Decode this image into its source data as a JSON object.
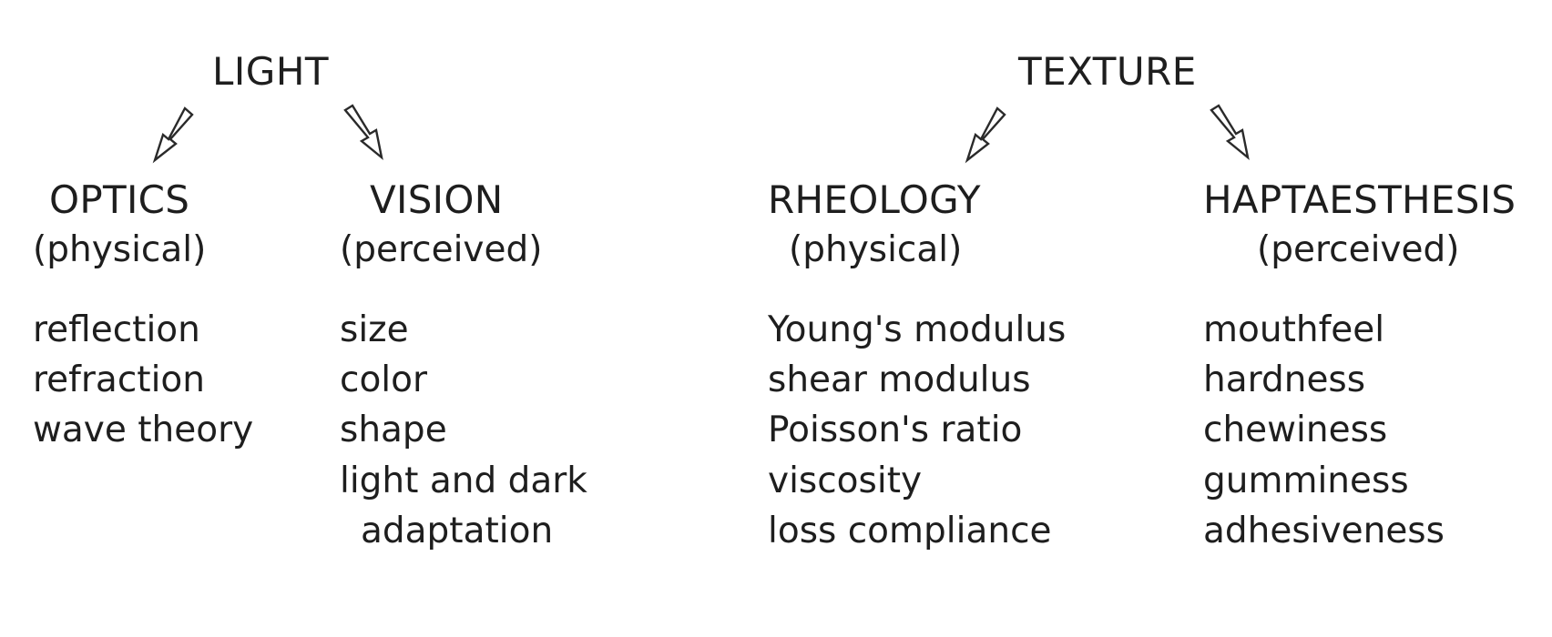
{
  "trees": {
    "light": {
      "title": "LIGHT",
      "left": {
        "title": "OPTICS",
        "qualifier": "(physical)",
        "items": [
          "reflection",
          "refraction",
          "wave theory"
        ]
      },
      "right": {
        "title": "VISION",
        "qualifier": "(perceived)",
        "items": [
          "size",
          "color",
          "shape",
          "light and dark",
          "adaptation"
        ]
      }
    },
    "texture": {
      "title": "TEXTURE",
      "left": {
        "title": "RHEOLOGY",
        "qualifier": "(physical)",
        "items": [
          "Young's modulus",
          "shear modulus",
          "Poisson's ratio",
          "viscosity",
          "loss compliance"
        ]
      },
      "right": {
        "title": "HAPTAESTHESIS",
        "qualifier": "(perceived)",
        "items": [
          "mouthfeel",
          "hardness",
          "chewiness",
          "gumminess",
          "adhesiveness"
        ]
      }
    }
  },
  "colors": {
    "text": "#1e1e1e",
    "arrow_stroke": "#2a2a2a",
    "arrow_fill": "#ffffff",
    "background": "#ffffff"
  }
}
